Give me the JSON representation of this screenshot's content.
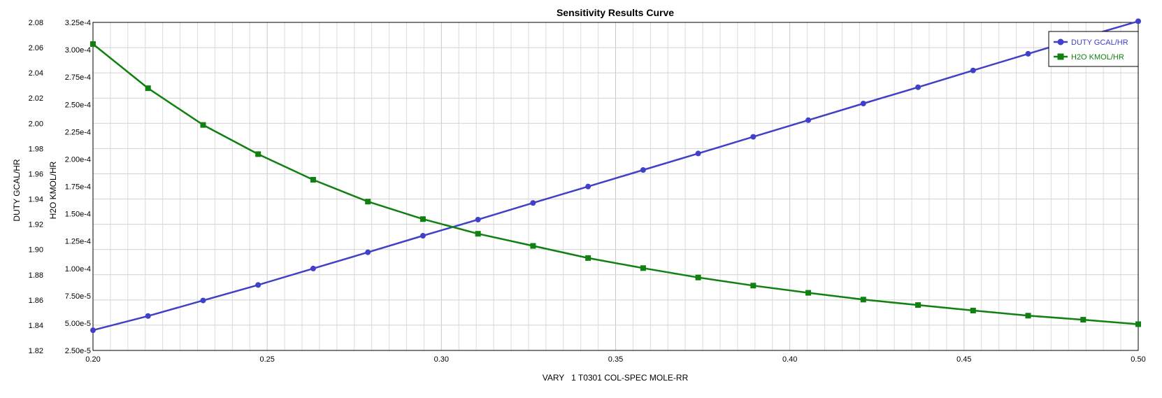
{
  "chart_data": {
    "type": "line",
    "title": "Sensitivity Results Curve",
    "xlabel": "VARY   1 T0301 COL-SPEC MOLE-RR",
    "ylabel_left": "DUTY GCAL/HR",
    "ylabel_right": "H2O KMOL/HR",
    "xlim": [
      0.2,
      0.5
    ],
    "x_ticks": [
      "0.20",
      "0.25",
      "0.30",
      "0.35",
      "0.40",
      "0.45",
      "0.50"
    ],
    "y1lim": [
      1.82,
      2.08
    ],
    "y1_ticks": [
      "1.82",
      "1.84",
      "1.86",
      "1.88",
      "1.90",
      "1.92",
      "1.94",
      "1.96",
      "1.98",
      "2.00",
      "2.02",
      "2.04",
      "2.06",
      "2.08"
    ],
    "y2lim": [
      2.5e-05,
      0.000325
    ],
    "y2_ticks": [
      "2.50e-5",
      "5.00e-5",
      "7.50e-5",
      "1.00e-4",
      "1.25e-4",
      "1.50e-4",
      "1.75e-4",
      "2.00e-4",
      "2.25e-4",
      "2.50e-4",
      "2.75e-4",
      "3.00e-4",
      "3.25e-4"
    ],
    "grid": true,
    "legend_position": "top-right",
    "x": [
      0.2,
      0.2158,
      0.2316,
      0.2474,
      0.2632,
      0.2789,
      0.2947,
      0.3105,
      0.3263,
      0.3421,
      0.3579,
      0.3737,
      0.3895,
      0.4053,
      0.4211,
      0.4368,
      0.4526,
      0.4684,
      0.4842,
      0.5
    ],
    "series": [
      {
        "name": "DUTY GCAL/HR",
        "axis": "left",
        "color": "#4040c8",
        "marker": "circle",
        "values": [
          1.836,
          1.8473,
          1.8596,
          1.8719,
          1.8849,
          1.8978,
          1.9109,
          1.9237,
          1.9369,
          1.9499,
          1.963,
          1.9761,
          1.9893,
          2.0025,
          2.0157,
          2.0286,
          2.0419,
          2.0551,
          2.0682,
          2.0809
        ]
      },
      {
        "name": "H2O KMOL/HR",
        "axis": "right",
        "color": "#108010",
        "marker": "square",
        "values": [
          0.0003052,
          0.0002648,
          0.0002312,
          0.0002045,
          0.0001811,
          0.0001611,
          0.0001451,
          0.0001317,
          0.0001206,
          0.0001095,
          0.0001003,
          9.17e-05,
          8.43e-05,
          7.77e-05,
          7.15e-05,
          6.65e-05,
          6.15e-05,
          5.68e-05,
          5.31e-05,
          4.9e-05
        ]
      }
    ]
  }
}
